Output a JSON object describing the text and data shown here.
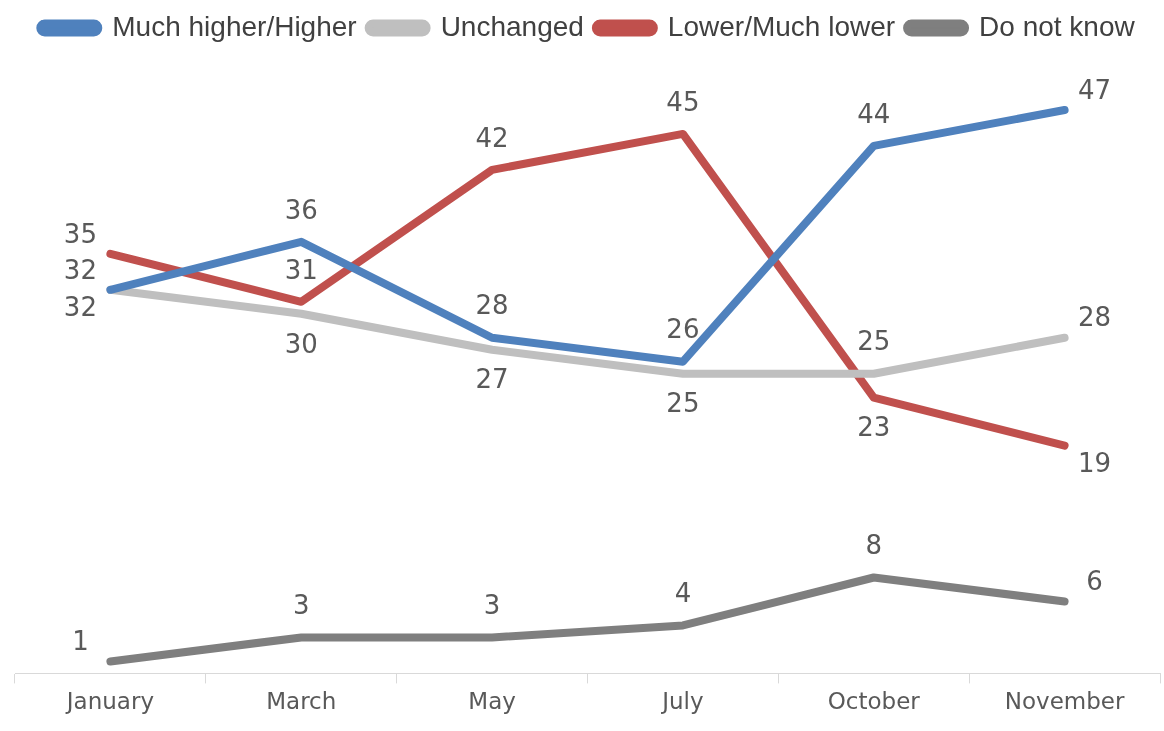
{
  "chart_data": {
    "type": "line",
    "categories": [
      "January",
      "March",
      "May",
      "July",
      "October",
      "November"
    ],
    "series": [
      {
        "name": "Much higher/Higher",
        "color": "#4f81bd",
        "values": [
          32,
          36,
          28,
          26,
          44,
          47
        ]
      },
      {
        "name": "Unchanged",
        "color": "#bfbfbf",
        "values": [
          32,
          30,
          27,
          25,
          25,
          28
        ]
      },
      {
        "name": "Lower/Much lower",
        "color": "#c0504d",
        "values": [
          35,
          31,
          42,
          45,
          23,
          19
        ]
      },
      {
        "name": "Do not know",
        "color": "#7f7f7f",
        "values": [
          1,
          3,
          3,
          4,
          8,
          6
        ]
      }
    ],
    "data_labels": true,
    "legend": "top",
    "grid": false,
    "marker": "none",
    "line_style": "solid",
    "tick_labels": "x"
  }
}
